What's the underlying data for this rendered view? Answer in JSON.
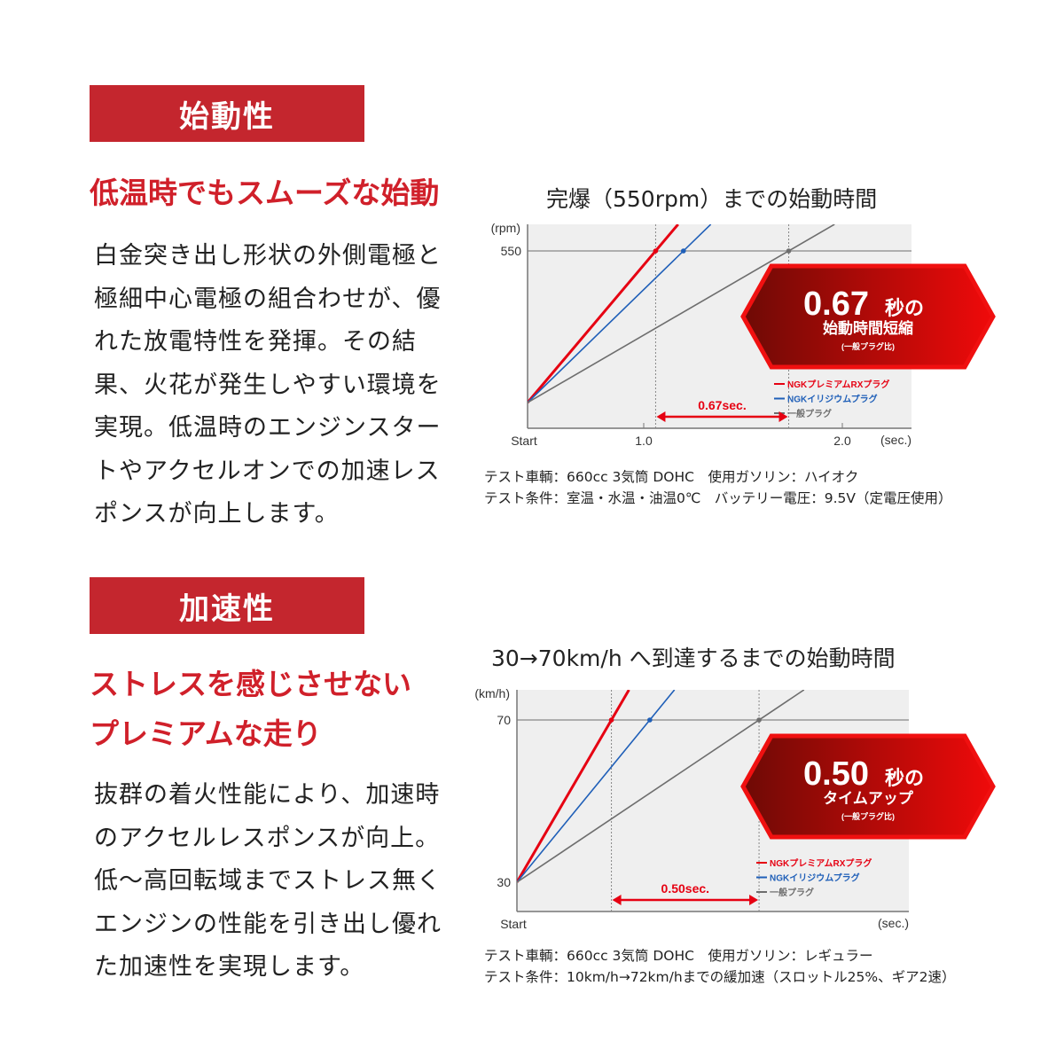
{
  "sections": [
    {
      "banner": "始動性",
      "subtitle_lines": [
        "低温時でもスムーズな始動"
      ],
      "body": "白金突き出し形状の外側電極と極細中心電極の組合わせが、優れた放電特性を発揮。その結果、火花が発生しやすい環境を実現。低温時のエンジンスタートやアクセルオンでの加速レスポンスが向上します。"
    },
    {
      "banner": "加速性",
      "subtitle_lines": [
        "ストレスを感じさせない",
        "プレミアムな走り"
      ],
      "body": "抜群の着火性能により、加速時のアクセルレスポンスが向上。低〜高回転域までストレス無くエンジンの性能を引き出し優れた加速性を実現します。"
    }
  ],
  "chart_data": [
    {
      "type": "line",
      "title": "完爆（550rpm）までの始動時間",
      "ylabel": "(rpm)",
      "xlabel": "(sec.)",
      "x_start_label": "Start",
      "x_ticks": [
        1.0,
        2.0
      ],
      "x_tick_labels": [
        "1.0",
        "2.0"
      ],
      "y_ticks": [
        550
      ],
      "y_tick_labels": [
        "550"
      ],
      "target": 550,
      "series": [
        {
          "name": "NGKプレミアムRXプラグ",
          "color": "#e60012",
          "reach_time": 1.06
        },
        {
          "name": "NGKイリジウムプラグ",
          "color": "#1f5fb8",
          "reach_time": 1.2
        },
        {
          "name": "一般プラグ",
          "color": "#6e6e6e",
          "reach_time": 1.73
        }
      ],
      "diff_label": "0.67sec.",
      "badge": {
        "big": "0.67",
        "unit": "秒の",
        "line2": "始動時間短縮",
        "line3": "(一般プラグ比)"
      },
      "notes": [
        "テスト車輌：660cc 3気筒 DOHC　使用ガソリン：ハイオク",
        "テスト条件：室温・水温・油温0℃　バッテリー電圧：9.5V（定電圧使用）"
      ]
    },
    {
      "type": "line",
      "title": "30→70km/h へ到達するまでの始動時間",
      "ylabel": "(km/h)",
      "xlabel": "(sec.)",
      "x_start_label": "Start",
      "y_ticks": [
        30,
        70
      ],
      "y_tick_labels": [
        "30",
        "70"
      ],
      "target": 70,
      "series": [
        {
          "name": "NGKプレミアムRXプラグ",
          "color": "#e60012",
          "reach_time": 0.32
        },
        {
          "name": "NGKイリジウムプラグ",
          "color": "#1f5fb8",
          "reach_time": 0.45
        },
        {
          "name": "一般プラグ",
          "color": "#6e6e6e",
          "reach_time": 0.82
        }
      ],
      "diff_label": "0.50sec.",
      "badge": {
        "big": "0.50",
        "unit": "秒の",
        "line2": "タイムアップ",
        "line3": "(一般プラグ比)"
      },
      "notes": [
        "テスト車輌：660cc 3気筒 DOHC　使用ガソリン：レギュラー",
        "テスト条件：10km/h→72km/hまでの緩加速（スロットル25%、ギア2速）"
      ]
    }
  ]
}
